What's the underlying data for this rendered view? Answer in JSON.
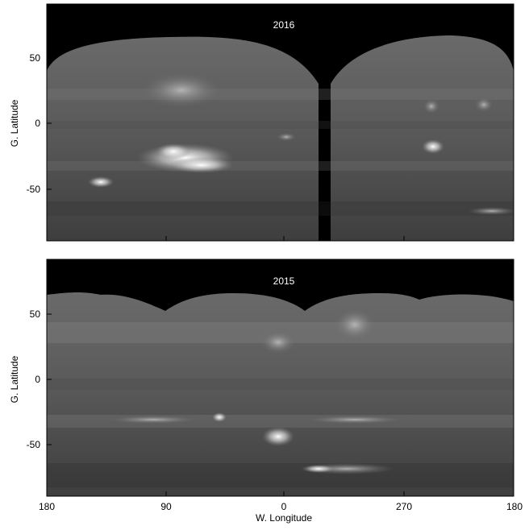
{
  "panels": [
    {
      "title": "2016",
      "ylabel": "G. Latitude",
      "yticks": [
        "50",
        "0",
        "-50"
      ]
    },
    {
      "title": "2015",
      "ylabel": "G. Latitude",
      "yticks": [
        "50",
        "0",
        "-50"
      ]
    }
  ],
  "xaxis": {
    "label": "W. Longitude",
    "ticks": [
      "180",
      "90",
      "0",
      "270",
      "180"
    ]
  },
  "colors": {
    "background": "#000000",
    "frame": "#000000"
  }
}
